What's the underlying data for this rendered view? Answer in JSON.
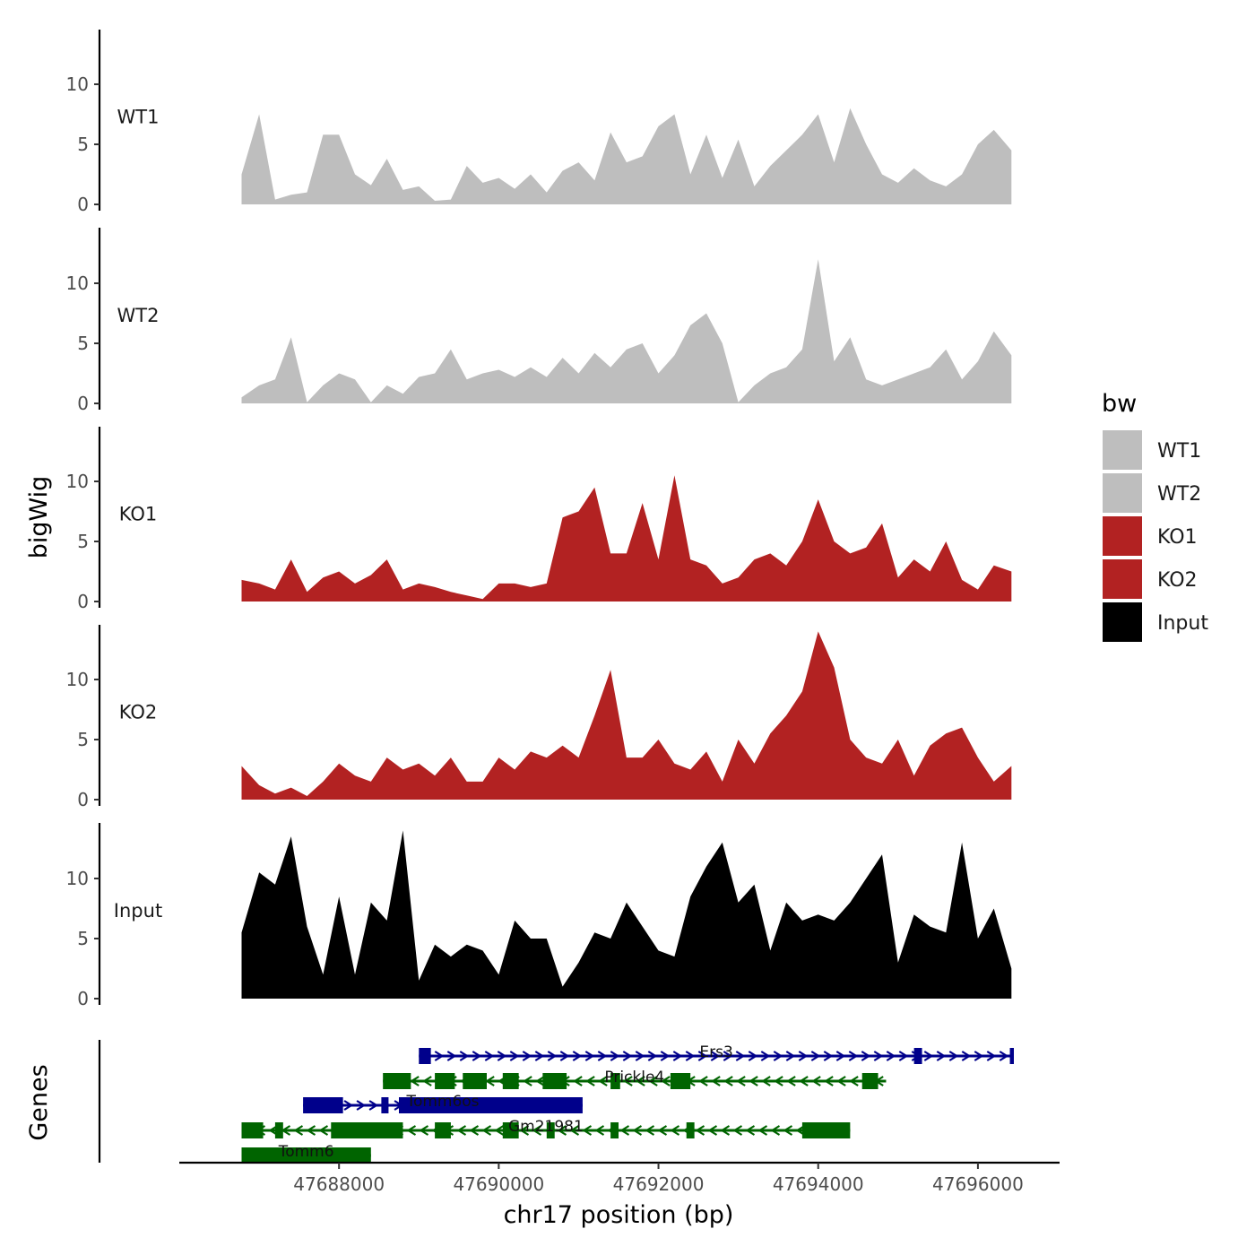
{
  "chart_data": {
    "type": "area",
    "title": "",
    "xlabel": "chr17 position (bp)",
    "ylabel": "bigWig",
    "genes_label": "Genes",
    "xlim": [
      47686000,
      47697000
    ],
    "x_ticks": [
      47688000,
      47690000,
      47692000,
      47694000,
      47696000
    ],
    "x_tick_labels": [
      "47688000",
      "47690000",
      "47692000",
      "47694000",
      "47696000"
    ],
    "ylim": [
      0,
      14.5
    ],
    "y_ticks": [
      0,
      5,
      10
    ],
    "y_tick_labels": [
      "0",
      "5",
      "10"
    ],
    "grid": false,
    "legend": {
      "title": "bw",
      "position": "right",
      "entries": [
        {
          "label": "WT1",
          "color": "#bebebe"
        },
        {
          "label": "WT2",
          "color": "#bebebe"
        },
        {
          "label": "KO1",
          "color": "#b22222"
        },
        {
          "label": "KO2",
          "color": "#b22222"
        },
        {
          "label": "Input",
          "color": "#000000"
        }
      ]
    },
    "x": [
      47686780,
      47687000,
      47687200,
      47687400,
      47687600,
      47687800,
      47688000,
      47688200,
      47688400,
      47688600,
      47688800,
      47689000,
      47689200,
      47689400,
      47689600,
      47689800,
      47690000,
      47690200,
      47690400,
      47690600,
      47690800,
      47691000,
      47691200,
      47691400,
      47691600,
      47691800,
      47692000,
      47692200,
      47692400,
      47692600,
      47692800,
      47693000,
      47693200,
      47693400,
      47693600,
      47693800,
      47694000,
      47694200,
      47694400,
      47694600,
      47694800,
      47695000,
      47695200,
      47695400,
      47695600,
      47695800,
      47696000,
      47696200,
      47696420
    ],
    "series": [
      {
        "name": "WT1",
        "color": "#bebebe",
        "values": [
          2.5,
          7.5,
          0.4,
          0.8,
          1.0,
          5.8,
          5.8,
          2.5,
          1.6,
          3.8,
          1.2,
          1.5,
          0.3,
          0.4,
          3.2,
          1.8,
          2.2,
          1.3,
          2.5,
          1.0,
          2.8,
          3.5,
          2.0,
          6.0,
          3.5,
          4.0,
          6.5,
          7.5,
          2.5,
          5.8,
          2.2,
          5.4,
          1.5,
          3.2,
          4.5,
          5.8,
          7.5,
          3.5,
          8.0,
          5.0,
          2.5,
          1.8,
          3.0,
          2.0,
          1.5,
          2.5,
          5.0,
          6.2,
          4.5
        ]
      },
      {
        "name": "WT2",
        "color": "#bebebe",
        "values": [
          0.5,
          1.5,
          2.0,
          5.5,
          0.1,
          1.5,
          2.5,
          2.0,
          0.1,
          1.5,
          0.8,
          2.2,
          2.5,
          4.5,
          2.0,
          2.5,
          2.8,
          2.2,
          3.0,
          2.2,
          3.8,
          2.5,
          4.2,
          3.0,
          4.5,
          5.0,
          2.5,
          4.0,
          6.5,
          7.5,
          5.0,
          0.1,
          1.5,
          2.5,
          3.0,
          4.5,
          12.0,
          3.5,
          5.5,
          2.0,
          1.5,
          2.0,
          2.5,
          3.0,
          4.5,
          2.0,
          3.5,
          6.0,
          4.0
        ]
      },
      {
        "name": "KO1",
        "color": "#b22222",
        "values": [
          1.8,
          1.5,
          1.0,
          3.5,
          0.8,
          2.0,
          2.5,
          1.5,
          2.2,
          3.5,
          1.0,
          1.5,
          1.2,
          0.8,
          0.5,
          0.2,
          1.5,
          1.5,
          1.2,
          1.5,
          7.0,
          7.5,
          9.5,
          4.0,
          4.0,
          8.2,
          3.5,
          10.5,
          3.5,
          3.0,
          1.5,
          2.0,
          3.5,
          4.0,
          3.0,
          5.0,
          8.5,
          5.0,
          4.0,
          4.5,
          6.5,
          2.0,
          3.5,
          2.5,
          5.0,
          1.8,
          1.0,
          3.0,
          2.5
        ]
      },
      {
        "name": "KO2",
        "color": "#b22222",
        "values": [
          2.8,
          1.2,
          0.5,
          1.0,
          0.3,
          1.5,
          3.0,
          2.0,
          1.5,
          3.5,
          2.5,
          3.0,
          2.0,
          3.5,
          1.5,
          1.5,
          3.5,
          2.5,
          4.0,
          3.5,
          4.5,
          3.5,
          7.0,
          10.8,
          3.5,
          3.5,
          5.0,
          3.0,
          2.5,
          4.0,
          1.5,
          5.0,
          3.0,
          5.5,
          7.0,
          9.0,
          14.0,
          11.0,
          5.0,
          3.5,
          3.0,
          5.0,
          2.0,
          4.5,
          5.5,
          6.0,
          3.5,
          1.5,
          2.8
        ]
      },
      {
        "name": "Input",
        "color": "#000000",
        "values": [
          5.5,
          10.5,
          9.5,
          13.5,
          6.0,
          2.0,
          8.5,
          2.0,
          8.0,
          6.5,
          14.0,
          1.5,
          4.5,
          3.5,
          4.5,
          4.0,
          2.0,
          6.5,
          5.0,
          5.0,
          1.0,
          3.0,
          5.5,
          5.0,
          8.0,
          6.0,
          4.0,
          3.5,
          8.5,
          11.0,
          13.0,
          8.0,
          9.5,
          4.0,
          8.0,
          6.5,
          7.0,
          6.5,
          8.0,
          10.0,
          12.0,
          3.0,
          7.0,
          6.0,
          5.5,
          13.0,
          5.0,
          7.5,
          2.5
        ]
      }
    ],
    "genes": [
      {
        "name": "Ers3",
        "strand": "+",
        "color": "#00008b",
        "start": 47689000,
        "end": 47696450,
        "exons": [
          [
            47689000,
            47689150
          ],
          [
            47695200,
            47695300
          ],
          [
            47696400,
            47696450
          ]
        ]
      },
      {
        "name": "Prickle4",
        "strand": "-",
        "color": "#006400",
        "start": 47688550,
        "end": 47694850,
        "exons": [
          [
            47688550,
            47688900
          ],
          [
            47689200,
            47689450
          ],
          [
            47689550,
            47689850
          ],
          [
            47690050,
            47690250
          ],
          [
            47690550,
            47690850
          ],
          [
            47691400,
            47691520
          ],
          [
            47692150,
            47692400
          ],
          [
            47694550,
            47694750
          ]
        ]
      },
      {
        "name": "Tomm6os",
        "strand": "+",
        "color": "#00008b",
        "start": 47687550,
        "end": 47691050,
        "exons": [
          [
            47687550,
            47688050
          ],
          [
            47688530,
            47688620
          ],
          [
            47688750,
            47691050
          ]
        ]
      },
      {
        "name": "Gm21981",
        "strand": "-",
        "color": "#006400",
        "start": 47686780,
        "end": 47694400,
        "exons": [
          [
            47686780,
            47687050
          ],
          [
            47687200,
            47687300
          ],
          [
            47687900,
            47688800
          ],
          [
            47689200,
            47689400
          ],
          [
            47690050,
            47690250
          ],
          [
            47690600,
            47690700
          ],
          [
            47691400,
            47691500
          ],
          [
            47692350,
            47692450
          ],
          [
            47693800,
            47694400
          ]
        ]
      },
      {
        "name": "Tomm6",
        "strand": "-",
        "color": "#006400",
        "start": 47686780,
        "end": 47688400,
        "exons": [
          [
            47686780,
            47688400
          ]
        ]
      }
    ]
  }
}
